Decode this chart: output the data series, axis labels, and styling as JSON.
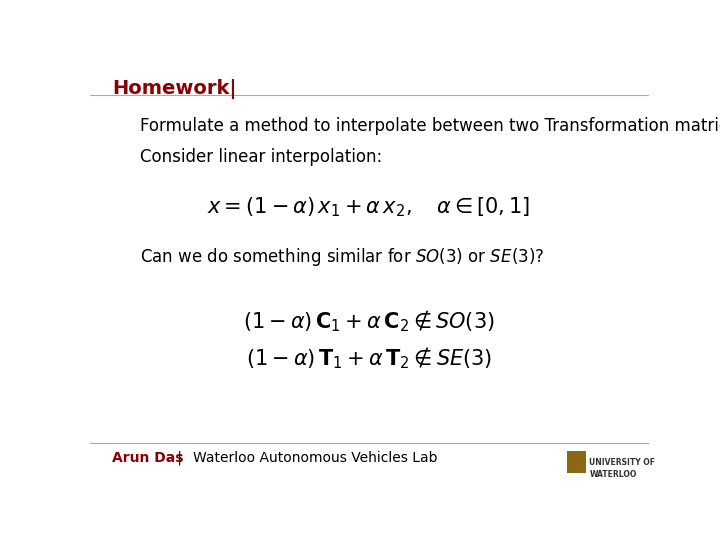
{
  "title": "Homework|",
  "title_color": "#8B0000",
  "bg_color": "#FFFFFF",
  "line1": "Formulate a method to interpolate between two Transformation matrices.",
  "line2": "Consider linear interpolation:",
  "formula1": "$x = (1-\\alpha)\\, x_1 + \\alpha\\, x_2, \\quad \\alpha \\in [0, 1]$",
  "line3": "Can we do something similar for $SO(3)$ or $SE(3)$?",
  "formula2_line1": "$(1-\\alpha)\\,\\mathbf{C}_1 + \\alpha\\,\\mathbf{C}_2 \\notin SO(3)$",
  "formula2_line2": "$(1-\\alpha)\\,\\mathbf{T}_1 + \\alpha\\,\\mathbf{T}_2 \\notin SE(3)$",
  "footer_author": "Arun Das",
  "footer_sep": " | ",
  "footer_lab": "Waterloo Autonomous Vehicles Lab",
  "footer_color": "#8B0000",
  "footer_lab_color": "#000000",
  "header_line_color": "#AAAAAA",
  "footer_line_color": "#AAAAAA",
  "text_color": "#000000",
  "text_fontsize": 12,
  "formula_fontsize": 15,
  "title_fontsize": 14,
  "footer_fontsize": 10
}
